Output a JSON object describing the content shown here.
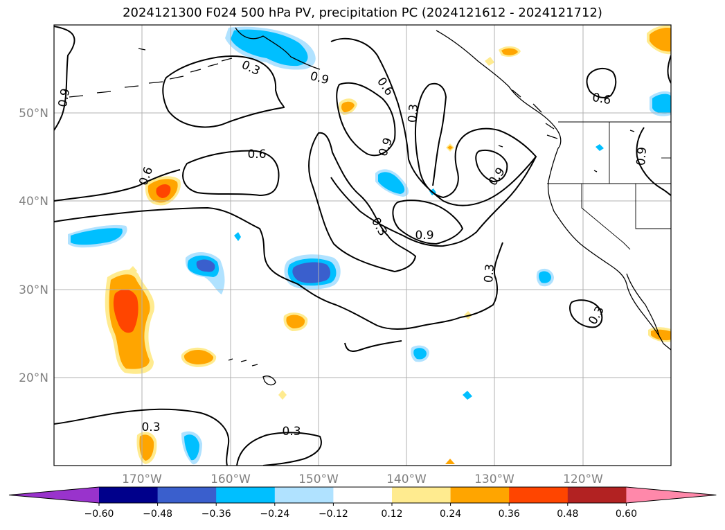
{
  "title": "2024121300 F024 500 hPa PV, precipitation PC (2024121612 - 2024121712)",
  "map": {
    "lat_labels": [
      "50°N",
      "40°N",
      "30°N",
      "20°N"
    ],
    "lon_labels": [
      "170°W",
      "160°W",
      "150°W",
      "140°W",
      "130°W",
      "120°W"
    ],
    "contour_labels": [
      "0.9",
      "0.3",
      "0.9",
      "0.6",
      "0.3",
      "0.6",
      "0.6",
      "0.9",
      "0.9",
      "0.6",
      "0.3",
      "0.9",
      "0.3",
      "0.3",
      "0.3",
      "0.3",
      "0.9",
      "0.3",
      "0.6"
    ],
    "grid": true
  },
  "colorbar": {
    "ticks": [
      "−0.60",
      "−0.48",
      "−0.36",
      "−0.24",
      "−0.12",
      "0.12",
      "0.24",
      "0.36",
      "0.48",
      "0.60"
    ],
    "colors": [
      "#9933cc",
      "#00008b",
      "#3a5fcd",
      "#00bfff",
      "#b0e2ff",
      "#ffffff",
      "#ffeb8f",
      "#ffa500",
      "#ff4500",
      "#b22222",
      "#ff88aa"
    ],
    "extend": "both"
  }
}
